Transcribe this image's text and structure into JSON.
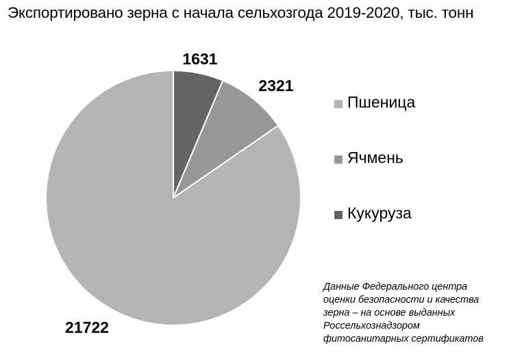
{
  "title": "Экспортировано зерна с начала сельхозгода 2019-2020, тыс. тонн",
  "chart_data": {
    "type": "pie",
    "title": "Экспортировано зерна с начала сельхозгода 2019-2020, тыс. тонн",
    "slices": [
      {
        "label": "Кукуруза",
        "value": 1631,
        "color": "#646464"
      },
      {
        "label": "Ячмень",
        "value": 2321,
        "color": "#979797"
      },
      {
        "label": "Пшеница",
        "value": 21722,
        "color": "#b4b4b4"
      }
    ],
    "start": "top",
    "direction": "clockwise",
    "legend_position": "right",
    "data_labels": [
      "1631",
      "2321",
      "21722"
    ]
  },
  "legend": [
    {
      "label": "Пшеница",
      "color": "#b4b4b4"
    },
    {
      "label": "Ячмень",
      "color": "#979797"
    },
    {
      "label": "Кукуруза",
      "color": "#646464"
    }
  ],
  "source_note": [
    "Данные Федерального центра",
    "оценки безопасности и качества",
    "зерна – на основе выданных",
    "Россельхознадзором",
    "фитосанитарных сертификатов"
  ]
}
